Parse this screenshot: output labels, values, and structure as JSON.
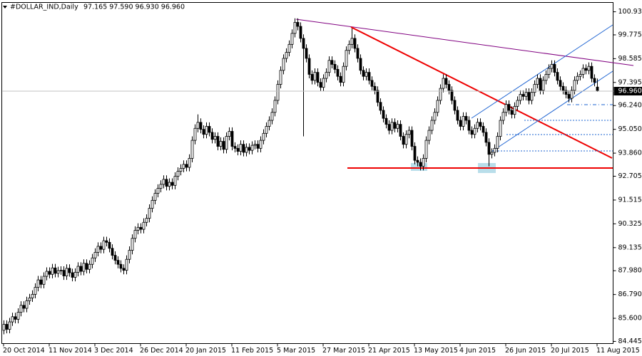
{
  "chart_data": {
    "type": "candlestick",
    "title": "#DOLLAR_IND,Daily",
    "ohlc_label": "97.165 97.590 96.930 96.960",
    "last_price": {
      "value": 96.96,
      "label": "96.960"
    },
    "up_color": "#ffffff",
    "down_color": "#000000",
    "wick_color": "#000000",
    "ylim": [
      84.338,
      101.394
    ],
    "yticks": [
      84.445,
      {
        "value": 85.6,
        "label": "85.600"
      },
      {
        "value": 86.79,
        "label": "86.790"
      },
      {
        "value": 87.98,
        "label": "87.980"
      },
      89.135,
      90.325,
      91.515,
      92.705,
      {
        "value": 93.86,
        "label": "93.860"
      },
      {
        "value": 95.05,
        "label": "95.050"
      },
      {
        "value": 96.24,
        "label": "96.240"
      },
      97.395,
      98.585,
      99.775,
      {
        "value": 100.93,
        "label": "100.930"
      }
    ],
    "categories": [
      "20 Oct 2014",
      null,
      null,
      null,
      null,
      null,
      null,
      null,
      null,
      null,
      null,
      null,
      null,
      null,
      null,
      null,
      "11 Nov 2014",
      null,
      null,
      null,
      null,
      null,
      null,
      null,
      null,
      null,
      null,
      null,
      null,
      null,
      null,
      null,
      "3 Dec 2014",
      null,
      null,
      null,
      null,
      null,
      null,
      null,
      null,
      null,
      null,
      null,
      null,
      null,
      null,
      null,
      "26 Dec 2014",
      null,
      null,
      null,
      null,
      null,
      null,
      null,
      null,
      null,
      null,
      null,
      null,
      null,
      null,
      null,
      "20 Jan 2015",
      null,
      null,
      null,
      null,
      null,
      null,
      null,
      null,
      null,
      null,
      null,
      null,
      null,
      null,
      null,
      "11 Feb 2015",
      null,
      null,
      null,
      null,
      null,
      null,
      null,
      null,
      null,
      null,
      null,
      null,
      null,
      null,
      null,
      "5 Mar 2015",
      null,
      null,
      null,
      null,
      null,
      null,
      null,
      null,
      null,
      null,
      null,
      null,
      null,
      null,
      null,
      "27 Mar 2015",
      null,
      null,
      null,
      null,
      null,
      null,
      null,
      null,
      null,
      null,
      null,
      null,
      null,
      null,
      null,
      "21 Apr 2015",
      null,
      null,
      null,
      null,
      null,
      null,
      null,
      null,
      null,
      null,
      null,
      null,
      null,
      null,
      null,
      "13 May 2015",
      null,
      null,
      null,
      null,
      null,
      null,
      null,
      null,
      null,
      null,
      null,
      null,
      null,
      null,
      null,
      "4 Jun 2015",
      null,
      null,
      null,
      null,
      null,
      null,
      null,
      null,
      null,
      null,
      null,
      null,
      null,
      null,
      null,
      "26 Jun 2015",
      null,
      null,
      null,
      null,
      null,
      null,
      null,
      null,
      null,
      null,
      null,
      null,
      null,
      null,
      null,
      "20 Jul 2015",
      null,
      null,
      null,
      null,
      null,
      null,
      null,
      null,
      null,
      null,
      null,
      null,
      null,
      null,
      null,
      "11 Aug 2015"
    ],
    "open": [
      85.0,
      85.3,
      85.05,
      85.42,
      85.68,
      85.55,
      85.9,
      86.25,
      86.1,
      86.48,
      86.62,
      86.8,
      87.15,
      87.52,
      87.3,
      87.7,
      87.95,
      87.8,
      88.12,
      87.85,
      87.98,
      88.0,
      87.72,
      88.1,
      87.88,
      87.65,
      87.9,
      88.2,
      87.95,
      88.35,
      88.05,
      88.3,
      88.62,
      88.9,
      89.2,
      89.05,
      89.48,
      89.4,
      89.1,
      88.75,
      88.5,
      88.3,
      88.1,
      88.0,
      88.55,
      89.0,
      89.6,
      90.0,
      90.15,
      90.05,
      90.4,
      90.6,
      91.1,
      91.5,
      91.85,
      92.1,
      92.3,
      92.55,
      92.2,
      92.4,
      92.25,
      92.7,
      92.95,
      93.1,
      93.3,
      93.15,
      93.6,
      94.5,
      95.1,
      95.4,
      95.05,
      94.8,
      95.2,
      94.9,
      94.55,
      94.7,
      94.2,
      94.45,
      94.05,
      94.7,
      94.95,
      94.2,
      94.1,
      93.95,
      94.3,
      93.9,
      94.15,
      94.0,
      94.25,
      94.3,
      94.1,
      94.5,
      94.85,
      95.2,
      95.5,
      95.9,
      96.5,
      97.3,
      98.0,
      98.6,
      98.9,
      99.3,
      99.85,
      100.4,
      100.2,
      99.6,
      99.1,
      98.6,
      97.8,
      97.5,
      97.9,
      97.4,
      97.15,
      97.6,
      97.9,
      98.5,
      98.3,
      98.05,
      97.7,
      97.4,
      98.2,
      99.0,
      99.3,
      99.6,
      99.1,
      98.6,
      98.0,
      97.7,
      97.9,
      97.5,
      97.2,
      97.0,
      96.4,
      96.0,
      95.6,
      95.3,
      95.0,
      95.4,
      95.1,
      95.3,
      94.7,
      94.3,
      94.8,
      95.0,
      94.2,
      93.5,
      93.4,
      93.2,
      93.6,
      94.5,
      95.0,
      95.5,
      95.9,
      96.5,
      97.1,
      97.6,
      97.3,
      97.0,
      96.5,
      96.0,
      95.5,
      95.2,
      95.7,
      95.5,
      95.0,
      94.8,
      95.1,
      95.4,
      95.2,
      94.9,
      94.4,
      93.8,
      93.9,
      94.1,
      94.7,
      95.5,
      95.9,
      96.3,
      96.0,
      95.8,
      96.2,
      96.5,
      96.8,
      96.7,
      96.9,
      96.5,
      96.9,
      97.3,
      97.6,
      97.0,
      97.5,
      97.8,
      98.1,
      98.3,
      97.9,
      97.5,
      97.2,
      97.0,
      96.8,
      96.6,
      97.0,
      97.5,
      97.7,
      97.8,
      98.1,
      98.0,
      98.2,
      97.6,
      97.165
    ],
    "high": [
      85.5,
      85.5,
      85.62,
      85.88,
      85.88,
      86.1,
      86.45,
      86.45,
      86.68,
      86.82,
      87.0,
      87.35,
      87.72,
      87.72,
      87.9,
      88.15,
      88.15,
      88.32,
      88.32,
      88.18,
      88.2,
      88.2,
      88.3,
      88.3,
      88.08,
      88.1,
      88.4,
      88.4,
      88.55,
      88.55,
      88.5,
      88.82,
      89.1,
      89.4,
      89.4,
      89.68,
      89.68,
      89.6,
      89.3,
      88.95,
      88.7,
      88.5,
      88.3,
      88.75,
      89.2,
      89.8,
      90.2,
      90.35,
      90.35,
      90.6,
      90.8,
      91.3,
      91.7,
      92.05,
      92.3,
      92.5,
      92.75,
      92.75,
      92.6,
      92.6,
      92.9,
      93.15,
      93.3,
      93.5,
      93.5,
      93.8,
      94.7,
      95.3,
      95.8,
      95.6,
      95.25,
      95.4,
      95.4,
      95.1,
      94.9,
      94.9,
      94.65,
      94.65,
      94.9,
      95.15,
      95.15,
      94.4,
      94.3,
      94.5,
      94.5,
      94.35,
      94.35,
      94.45,
      94.5,
      94.5,
      94.7,
      95.05,
      95.4,
      95.7,
      96.1,
      96.7,
      97.5,
      98.2,
      98.8,
      99.1,
      99.5,
      100.05,
      100.6,
      100.6,
      100.4,
      99.8,
      99.3,
      98.8,
      98.0,
      98.1,
      98.1,
      97.6,
      97.8,
      98.1,
      98.7,
      98.7,
      98.5,
      98.25,
      97.9,
      98.4,
      99.2,
      99.5,
      100.1,
      99.8,
      99.3,
      98.8,
      98.2,
      98.1,
      98.1,
      97.7,
      97.4,
      97.2,
      96.6,
      96.2,
      95.8,
      95.5,
      95.6,
      95.6,
      95.5,
      95.5,
      94.9,
      95.0,
      95.2,
      95.2,
      94.4,
      93.7,
      93.6,
      93.8,
      94.7,
      95.2,
      95.7,
      96.1,
      96.7,
      97.3,
      97.8,
      97.8,
      97.5,
      97.2,
      96.7,
      96.2,
      95.7,
      95.9,
      95.9,
      95.7,
      95.2,
      95.3,
      95.6,
      95.6,
      95.4,
      95.1,
      94.6,
      94.1,
      94.3,
      94.9,
      95.7,
      96.1,
      96.5,
      96.5,
      96.2,
      96.4,
      96.7,
      97.0,
      97.0,
      97.1,
      97.1,
      97.1,
      97.5,
      97.8,
      97.8,
      97.7,
      98.0,
      98.3,
      98.5,
      98.5,
      98.1,
      97.7,
      97.4,
      97.2,
      97.0,
      97.2,
      97.7,
      97.9,
      98.0,
      98.3,
      98.3,
      98.4,
      98.4,
      97.8,
      97.59
    ],
    "low": [
      84.8,
      84.85,
      84.85,
      85.22,
      85.35,
      85.35,
      85.7,
      85.9,
      85.9,
      86.28,
      86.42,
      86.6,
      86.95,
      87.1,
      87.1,
      87.5,
      87.6,
      87.6,
      87.65,
      87.65,
      87.78,
      87.52,
      87.52,
      87.68,
      87.45,
      87.45,
      87.7,
      87.75,
      87.75,
      87.85,
      87.85,
      88.1,
      88.42,
      88.7,
      88.85,
      88.85,
      89.2,
      88.9,
      88.55,
      88.3,
      88.1,
      87.9,
      87.8,
      87.8,
      88.35,
      88.8,
      89.4,
      89.8,
      89.85,
      89.85,
      90.2,
      90.4,
      90.9,
      91.3,
      91.65,
      91.9,
      92.1,
      92.0,
      92.0,
      92.05,
      92.05,
      92.5,
      92.75,
      92.9,
      92.95,
      92.95,
      93.4,
      94.3,
      94.9,
      94.85,
      94.6,
      94.6,
      94.7,
      94.35,
      94.35,
      94.0,
      94.0,
      93.85,
      93.85,
      94.5,
      94.0,
      93.9,
      93.75,
      93.75,
      93.7,
      93.7,
      93.8,
      93.8,
      94.05,
      93.9,
      93.9,
      94.3,
      94.65,
      95.0,
      95.3,
      95.7,
      96.3,
      97.1,
      97.8,
      98.4,
      98.7,
      99.1,
      99.65,
      100.0,
      99.4,
      94.7,
      98.4,
      97.6,
      97.3,
      97.3,
      97.2,
      96.95,
      96.95,
      97.4,
      97.7,
      98.1,
      97.85,
      97.5,
      97.2,
      97.2,
      98.0,
      98.8,
      99.1,
      98.9,
      98.4,
      97.8,
      97.5,
      97.5,
      97.3,
      97.0,
      96.8,
      96.2,
      95.8,
      95.4,
      95.1,
      94.8,
      94.8,
      94.9,
      94.9,
      94.5,
      94.1,
      94.1,
      94.6,
      94.0,
      93.3,
      93.2,
      93.0,
      93.0,
      93.4,
      94.3,
      94.8,
      95.3,
      95.7,
      96.3,
      96.9,
      97.1,
      96.8,
      96.3,
      95.8,
      95.3,
      95.0,
      95.0,
      95.3,
      94.8,
      94.6,
      94.6,
      94.9,
      95.0,
      94.7,
      94.2,
      93.2,
      93.6,
      93.7,
      93.9,
      94.5,
      95.3,
      95.7,
      95.8,
      95.6,
      95.6,
      96.0,
      96.3,
      96.5,
      96.5,
      96.3,
      96.3,
      96.7,
      97.1,
      96.8,
      96.8,
      97.3,
      97.6,
      97.9,
      97.7,
      97.3,
      97.0,
      96.8,
      96.6,
      96.4,
      96.4,
      96.8,
      97.3,
      97.5,
      97.6,
      97.8,
      97.8,
      97.4,
      97.2,
      96.93
    ],
    "close": [
      85.3,
      85.05,
      85.42,
      85.68,
      85.55,
      85.9,
      86.25,
      86.1,
      86.48,
      86.62,
      86.8,
      87.15,
      87.52,
      87.3,
      87.7,
      87.95,
      87.8,
      88.12,
      87.85,
      87.98,
      88.0,
      87.72,
      88.1,
      87.88,
      87.65,
      87.9,
      88.2,
      87.95,
      88.35,
      88.05,
      88.3,
      88.62,
      88.9,
      89.2,
      89.05,
      89.48,
      89.4,
      89.1,
      88.75,
      88.5,
      88.3,
      88.1,
      88.0,
      88.55,
      89.0,
      89.6,
      90.0,
      90.15,
      90.05,
      90.4,
      90.6,
      91.1,
      91.5,
      91.85,
      92.1,
      92.3,
      92.55,
      92.2,
      92.4,
      92.25,
      92.7,
      92.95,
      93.1,
      93.3,
      93.15,
      93.6,
      94.5,
      95.1,
      95.4,
      95.05,
      94.8,
      95.2,
      94.9,
      94.55,
      94.7,
      94.2,
      94.45,
      94.05,
      94.7,
      94.95,
      94.2,
      94.1,
      93.95,
      94.3,
      93.9,
      94.15,
      94.0,
      94.25,
      94.3,
      94.1,
      94.5,
      94.85,
      95.2,
      95.5,
      95.9,
      96.5,
      97.3,
      98.0,
      98.6,
      98.9,
      99.3,
      99.85,
      100.4,
      100.2,
      99.6,
      99.1,
      98.6,
      97.8,
      97.5,
      97.9,
      97.4,
      97.15,
      97.6,
      97.9,
      98.5,
      98.3,
      98.05,
      97.7,
      97.4,
      98.2,
      99.0,
      99.3,
      99.6,
      99.1,
      98.6,
      98.0,
      97.7,
      97.9,
      97.5,
      97.2,
      97.0,
      96.4,
      96.0,
      95.6,
      95.3,
      95.0,
      95.4,
      95.1,
      95.3,
      94.7,
      94.3,
      94.8,
      95.0,
      94.2,
      93.5,
      93.4,
      93.2,
      93.6,
      94.5,
      95.0,
      95.5,
      95.9,
      96.5,
      97.1,
      97.6,
      97.3,
      97.0,
      96.5,
      96.0,
      95.5,
      95.2,
      95.7,
      95.5,
      95.0,
      94.8,
      95.1,
      95.4,
      95.2,
      94.9,
      94.4,
      93.8,
      93.9,
      94.1,
      94.7,
      95.5,
      95.9,
      96.3,
      96.0,
      95.8,
      96.2,
      96.5,
      96.8,
      96.7,
      96.9,
      96.5,
      96.9,
      97.3,
      97.6,
      97.0,
      97.5,
      97.8,
      98.1,
      98.3,
      97.9,
      97.5,
      97.2,
      97.0,
      96.8,
      96.6,
      97.0,
      97.5,
      97.7,
      97.8,
      98.1,
      98.0,
      98.2,
      97.6,
      97.4,
      96.96
    ]
  }
}
